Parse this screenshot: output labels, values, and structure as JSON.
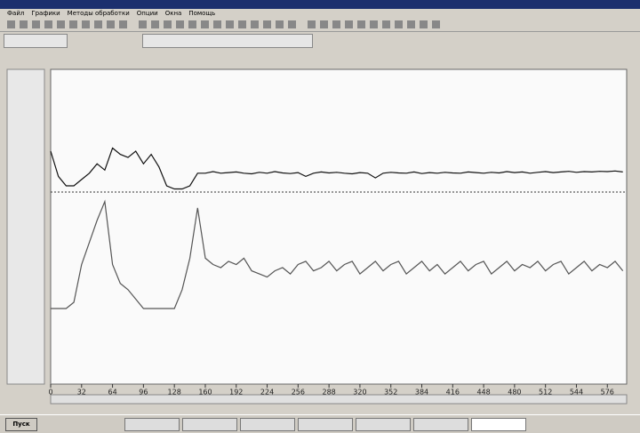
{
  "menu": [
    "Файл",
    "Графики",
    "Методы обработки",
    "Опции",
    "Окна",
    "Помощь"
  ],
  "taskbar": {
    "start": "Пуск"
  },
  "chart_data": {
    "type": "line",
    "x": [
      0,
      8,
      16,
      24,
      32,
      40,
      48,
      56,
      64,
      72,
      80,
      88,
      96,
      104,
      112,
      120,
      128,
      136,
      144,
      152,
      160,
      168,
      176,
      184,
      192,
      200,
      208,
      216,
      224,
      232,
      240,
      248,
      256,
      264,
      272,
      280,
      288,
      296,
      304,
      312,
      320,
      328,
      336,
      344,
      352,
      360,
      368,
      376,
      384,
      392,
      400,
      408,
      416,
      424,
      432,
      440,
      448,
      456,
      464,
      472,
      480,
      488,
      496,
      504,
      512,
      520,
      528,
      536,
      544,
      552,
      560,
      568,
      576,
      584,
      592
    ],
    "series": [
      {
        "color": "#111111",
        "values": [
          74,
          66,
          63,
          63,
          65,
          67,
          70,
          68,
          75,
          73,
          72,
          74,
          70,
          73,
          69,
          63,
          62,
          62,
          63,
          67,
          67,
          67.5,
          67,
          67.2,
          67.4,
          67,
          66.8,
          67.3,
          67,
          67.5,
          67.1,
          66.9,
          67.2,
          66,
          67,
          67.4,
          67.1,
          67.3,
          67,
          66.8,
          67.2,
          67,
          65.5,
          67,
          67.3,
          67.1,
          67,
          67.4,
          66.9,
          67.2,
          67,
          67.3,
          67.1,
          67,
          67.4,
          67.2,
          67,
          67.3,
          67.1,
          67.5,
          67.2,
          67.4,
          67,
          67.3,
          67.5,
          67.2,
          67.4,
          67.6,
          67.3,
          67.5,
          67.4,
          67.6,
          67.5,
          67.7,
          67.4
        ]
      },
      {
        "color": "#555555",
        "values": [
          24,
          24,
          24,
          26,
          38,
          45,
          52,
          58,
          38,
          32,
          30,
          27,
          24,
          24,
          24,
          24,
          24,
          30,
          40,
          56,
          40,
          38,
          37,
          39,
          38,
          40,
          36,
          35,
          34,
          36,
          37,
          35,
          38,
          39,
          36,
          37,
          39,
          36,
          38,
          39,
          35,
          37,
          39,
          36,
          38,
          39,
          35,
          37,
          39,
          36,
          38,
          35,
          37,
          39,
          36,
          38,
          39,
          35,
          37,
          39,
          36,
          38,
          37,
          39,
          36,
          38,
          39,
          35,
          37,
          39,
          36,
          38,
          37,
          39,
          36
        ]
      }
    ],
    "xlim": [
      0,
      596
    ],
    "ylim": [
      0,
      100
    ],
    "xticks": [
      0,
      32,
      64,
      96,
      128,
      160,
      192,
      224,
      256,
      288,
      320,
      352,
      384,
      416,
      448,
      480,
      512,
      544,
      576
    ]
  }
}
